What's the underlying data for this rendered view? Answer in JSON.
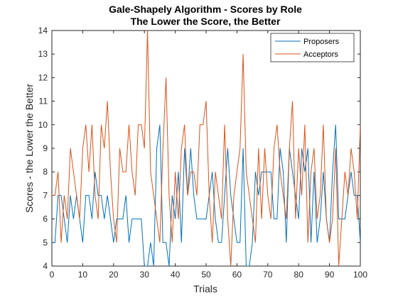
{
  "chart_data": {
    "type": "line",
    "title": "Gale-Shapely Algorithm - Scores by Role",
    "subtitle": "The Lower the Score, the Better",
    "xlabel": "Trials",
    "ylabel": "Scores - the Lower the Better",
    "xlim": [
      0,
      100
    ],
    "ylim": [
      4,
      14
    ],
    "xticks": [
      0,
      10,
      20,
      30,
      40,
      50,
      60,
      70,
      80,
      90,
      100
    ],
    "yticks": [
      4,
      5,
      6,
      7,
      8,
      9,
      10,
      11,
      12,
      13,
      14
    ],
    "grid": false,
    "legend_location": "top-right",
    "x": [
      0,
      1,
      2,
      3,
      4,
      5,
      6,
      7,
      8,
      9,
      10,
      11,
      12,
      13,
      14,
      15,
      16,
      17,
      18,
      19,
      20,
      21,
      22,
      23,
      24,
      25,
      26,
      27,
      28,
      29,
      30,
      31,
      32,
      33,
      34,
      35,
      36,
      37,
      38,
      39,
      40,
      41,
      42,
      43,
      44,
      45,
      46,
      47,
      48,
      49,
      50,
      51,
      52,
      53,
      54,
      55,
      56,
      57,
      58,
      59,
      60,
      61,
      62,
      63,
      64,
      65,
      66,
      67,
      68,
      69,
      70,
      71,
      72,
      73,
      74,
      75,
      76,
      77,
      78,
      79,
      80,
      81,
      82,
      83,
      84,
      85,
      86,
      87,
      88,
      89,
      90,
      91,
      92,
      93,
      94,
      95,
      96,
      97,
      98,
      99,
      100
    ],
    "series": [
      {
        "name": "Proposers",
        "color": "#0072BD",
        "values": [
          5,
          5,
          7,
          7,
          6,
          5,
          7,
          6,
          7,
          6,
          5,
          7,
          7,
          6,
          8,
          7,
          7,
          6,
          7,
          6,
          5,
          6,
          6,
          6,
          7,
          5,
          6,
          6,
          6,
          6,
          4,
          4,
          5,
          4,
          9,
          10,
          5,
          5,
          4,
          7,
          6,
          8,
          5,
          9,
          7,
          9,
          7,
          6,
          6,
          6,
          6,
          7,
          8,
          6,
          5,
          5,
          7,
          9,
          7,
          6,
          5,
          5,
          9,
          4,
          4,
          5,
          8,
          7,
          8,
          8,
          8,
          8,
          6,
          6,
          9,
          8,
          5,
          9,
          8,
          7,
          6,
          9,
          8,
          9,
          5,
          8,
          5,
          6,
          8,
          6,
          5,
          8,
          10,
          6,
          6,
          6,
          7,
          8,
          7,
          7,
          5
        ]
      },
      {
        "name": "Acceptors",
        "color": "#D95319",
        "values": [
          7,
          7,
          8,
          5,
          7,
          6,
          9,
          8,
          7,
          6,
          9,
          10,
          8,
          10,
          7,
          6,
          10,
          9,
          11,
          8,
          6,
          5,
          9,
          8,
          8,
          10,
          8,
          7,
          10,
          10,
          9,
          14,
          8,
          7,
          6,
          5,
          9,
          12,
          7,
          5,
          8,
          6,
          9,
          10,
          7,
          8,
          8,
          7,
          10,
          10,
          11,
          7,
          5,
          8,
          7,
          6,
          10,
          6,
          4,
          7,
          8,
          9,
          13,
          8,
          7,
          6,
          5,
          9,
          6,
          9,
          7,
          6,
          9,
          10,
          8,
          7,
          6,
          9,
          11,
          6,
          9,
          7,
          10,
          5,
          8,
          9,
          6,
          7,
          10,
          6,
          5,
          6,
          9,
          4,
          6,
          8,
          7,
          9,
          8,
          6,
          10
        ]
      }
    ]
  }
}
